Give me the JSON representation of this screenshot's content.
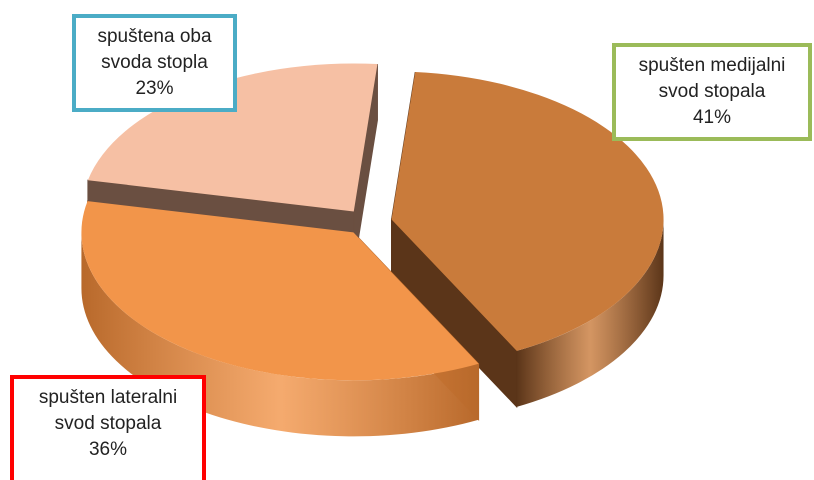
{
  "chart_data": {
    "type": "pie",
    "categories": [
      "spušten medijalni svod stopala",
      "spušten lateralni svod stopala",
      "spuštena oba svoda stopla"
    ],
    "values": [
      41,
      36,
      23
    ],
    "value_labels": [
      "41%",
      "36%",
      "23%"
    ],
    "colors": [
      "#c97b3b",
      "#f2954a",
      "#f6c0a4"
    ],
    "side_colors": [
      "#5b3519",
      "#b8692b",
      "#6a4f41"
    ],
    "label_border_colors": [
      "#9bbb59",
      "#ff0000",
      "#4bacc6"
    ]
  }
}
